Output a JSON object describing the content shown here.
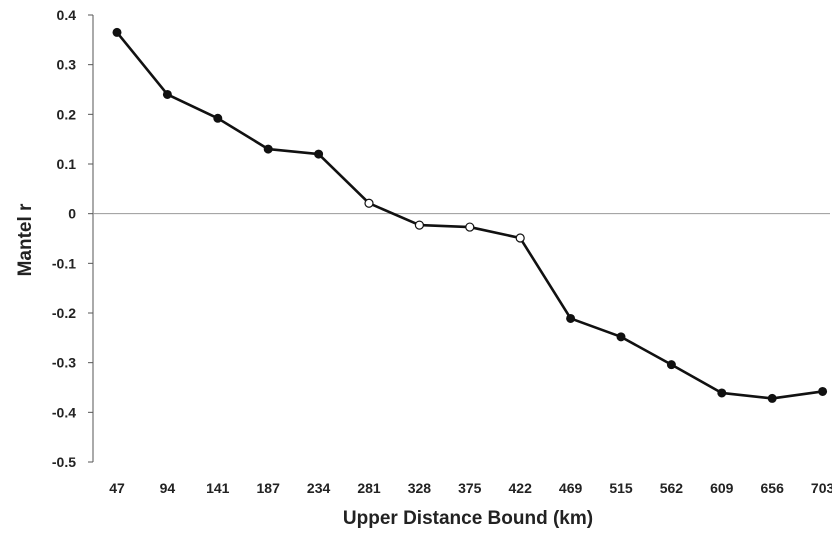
{
  "chart_data": {
    "type": "line",
    "title": "",
    "xlabel": "Upper Distance Bound (km)",
    "ylabel": "Mantel r",
    "x": [
      "47",
      "94",
      "141",
      "187",
      "234",
      "281",
      "328",
      "375",
      "422",
      "469",
      "515",
      "562",
      "609",
      "656",
      "703"
    ],
    "series": [
      {
        "values": [
          0.365,
          0.24,
          0.192,
          0.13,
          0.12,
          0.021,
          -0.023,
          -0.027,
          -0.049,
          -0.211,
          -0.248,
          -0.304,
          -0.361,
          -0.372,
          -0.358
        ],
        "significant": [
          true,
          true,
          true,
          true,
          true,
          false,
          false,
          false,
          false,
          true,
          true,
          true,
          true,
          true,
          true
        ]
      }
    ],
    "ylim": [
      -0.5,
      0.4
    ],
    "yticks": [
      "0.4",
      "0.3",
      "0.2",
      "0.1",
      "0",
      "-0.1",
      "-0.2",
      "-0.3",
      "-0.4",
      "-0.5"
    ],
    "ytick_values": [
      0.4,
      0.3,
      0.2,
      0.1,
      0,
      -0.1,
      -0.2,
      -0.3,
      -0.4,
      -0.5
    ],
    "grid": false,
    "legend": "none",
    "colors": {
      "line": "#111111",
      "axis": "#555555",
      "zero_line": "#999999",
      "open_marker_fill": "#ffffff"
    }
  }
}
